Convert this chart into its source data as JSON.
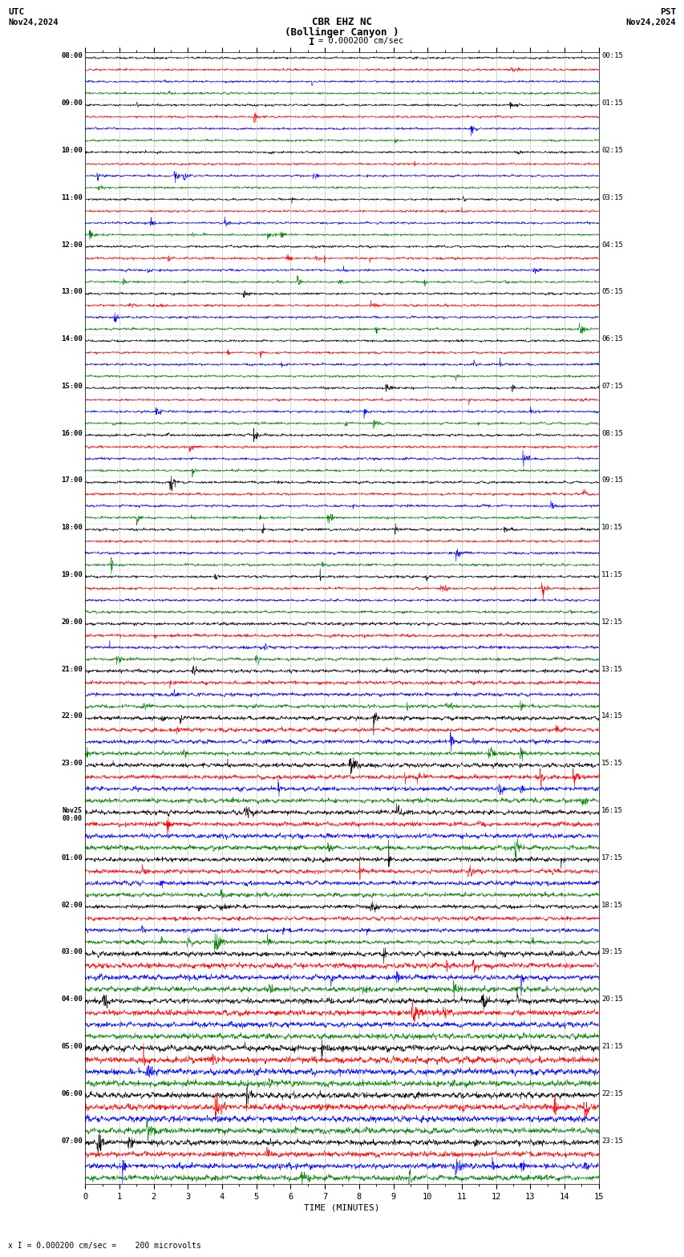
{
  "title_line1": "CBR EHZ NC",
  "title_line2": "(Bollinger Canyon )",
  "scale_text": "I = 0.000200 cm/sec",
  "header_left_line1": "UTC",
  "header_left_line2": "Nov24,2024",
  "header_right_line1": "PST",
  "header_right_line2": "Nov24,2024",
  "footer_text": "x I = 0.000200 cm/sec =    200 microvolts",
  "xlabel": "TIME (MINUTES)",
  "xlim": [
    0,
    15
  ],
  "xticks": [
    0,
    1,
    2,
    3,
    4,
    5,
    6,
    7,
    8,
    9,
    10,
    11,
    12,
    13,
    14,
    15
  ],
  "left_labels": [
    "08:00",
    "09:00",
    "10:00",
    "11:00",
    "12:00",
    "13:00",
    "14:00",
    "15:00",
    "16:00",
    "17:00",
    "18:00",
    "19:00",
    "20:00",
    "21:00",
    "22:00",
    "23:00",
    "Nov25\n00:00",
    "01:00",
    "02:00",
    "03:00",
    "04:00",
    "05:00",
    "06:00",
    "07:00"
  ],
  "right_labels": [
    "00:15",
    "01:15",
    "02:15",
    "03:15",
    "04:15",
    "05:15",
    "06:15",
    "07:15",
    "08:15",
    "09:15",
    "10:15",
    "11:15",
    "12:15",
    "13:15",
    "14:15",
    "15:15",
    "16:15",
    "17:15",
    "18:15",
    "19:15",
    "20:15",
    "21:15",
    "22:15",
    "23:15"
  ],
  "n_rows": 24,
  "traces_per_row": 4,
  "colors": [
    "black",
    "red",
    "blue",
    "green"
  ],
  "bg_color": "white",
  "grid_color": "#888888",
  "seed": 42,
  "n_points": 1800,
  "amp_scale": [
    0.28,
    0.28,
    0.28,
    0.28,
    0.3,
    0.3,
    0.3,
    0.3,
    0.32,
    0.32,
    0.32,
    0.32,
    0.4,
    0.45,
    0.5,
    0.55,
    0.6,
    0.55,
    0.5,
    0.65,
    0.7,
    0.8,
    0.75,
    0.7
  ]
}
